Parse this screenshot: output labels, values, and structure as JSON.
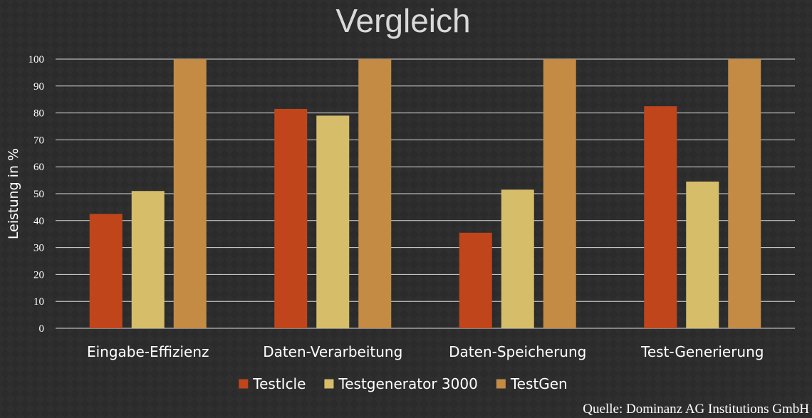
{
  "chart_data": {
    "type": "bar",
    "title": "Vergleich",
    "xlabel": "",
    "ylabel": "Leistung in %",
    "ylim": [
      0,
      100
    ],
    "yticks": [
      0,
      10,
      20,
      30,
      40,
      50,
      60,
      70,
      80,
      90,
      100
    ],
    "grid": true,
    "legend_position": "bottom",
    "categories": [
      "Eingabe-Effizienz",
      "Daten-Verarbeitung",
      "Daten-Speicherung",
      "Test-Generierung"
    ],
    "series": [
      {
        "name": "TestIcle",
        "color": "#c0451b",
        "values": [
          42.5,
          81.5,
          35.5,
          82.5
        ]
      },
      {
        "name": "Testgenerator 3000",
        "color": "#d6bd69",
        "values": [
          51,
          79,
          51.5,
          54.5
        ]
      },
      {
        "name": "TestGen",
        "color": "#c48b45",
        "values": [
          100,
          100,
          100,
          100
        ]
      }
    ]
  },
  "source": "Quelle: Dominanz AG Institutions GmbH",
  "colors": {
    "background": "#2b2b2b",
    "text": "#ffffff",
    "title": "#d9d9d9",
    "gridline": "#d9d9d9"
  }
}
